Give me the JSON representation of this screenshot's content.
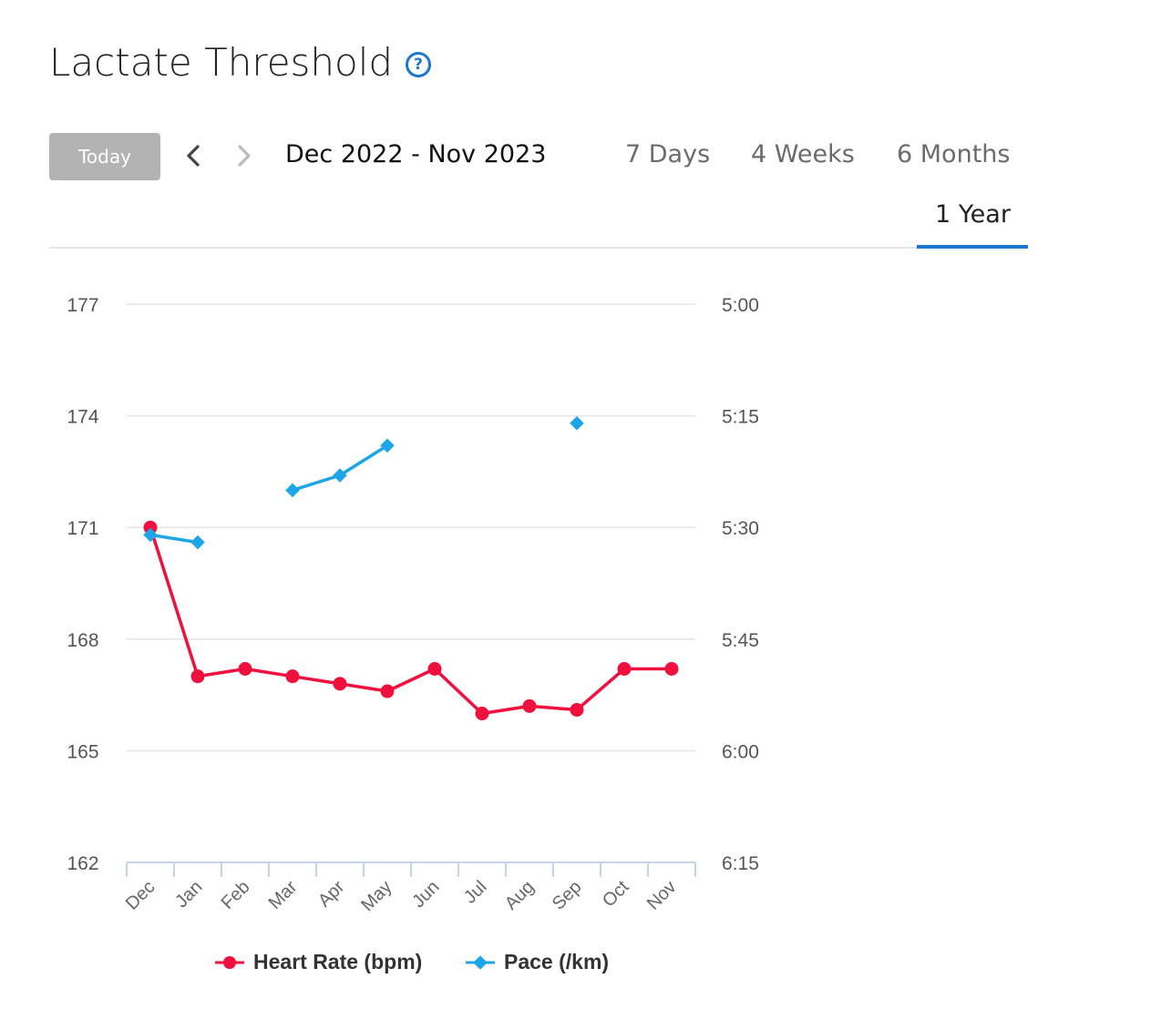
{
  "page": {
    "title": "Lactate Threshold",
    "help_icon": "question-circle-icon",
    "accent_color": "#1d77d1"
  },
  "toolbar": {
    "today_label": "Today",
    "prev_icon": "chevron-left-icon",
    "next_icon": "chevron-right-icon",
    "date_range": "Dec 2022 - Nov 2023",
    "tabs": [
      {
        "label": "7 Days",
        "active": false
      },
      {
        "label": "4 Weeks",
        "active": false
      },
      {
        "label": "6 Months",
        "active": false
      },
      {
        "label": "1 Year",
        "active": true
      }
    ]
  },
  "chart_data": {
    "type": "line",
    "categories": [
      "Dec",
      "Jan",
      "Feb",
      "Mar",
      "Apr",
      "May",
      "Jun",
      "Jul",
      "Aug",
      "Sep",
      "Oct",
      "Nov"
    ],
    "y_left": {
      "ticks": [
        "177",
        "174",
        "171",
        "168",
        "165",
        "162"
      ],
      "range": [
        162,
        177
      ]
    },
    "y_right": {
      "ticks": [
        "5:00",
        "5:15",
        "5:30",
        "5:45",
        "6:00",
        "6:15"
      ],
      "range": [
        "6:15",
        "5:00"
      ]
    },
    "grid": true,
    "legend_position": "bottom",
    "series": [
      {
        "name": "Heart Rate (bpm)",
        "axis": "left",
        "color": "#f0103e",
        "marker": "circle",
        "values": [
          171,
          167.0,
          167.2,
          167.0,
          166.8,
          166.6,
          167.2,
          166.0,
          166.2,
          166.1,
          167.2,
          167.2
        ]
      },
      {
        "name": "Pace (/km)",
        "axis": "right",
        "color": "#1da5e8",
        "marker": "diamond",
        "values": [
          "5:31",
          "5:32",
          null,
          "5:25",
          "5:23",
          "5:19",
          null,
          null,
          null,
          "5:16",
          null,
          null
        ]
      }
    ]
  }
}
